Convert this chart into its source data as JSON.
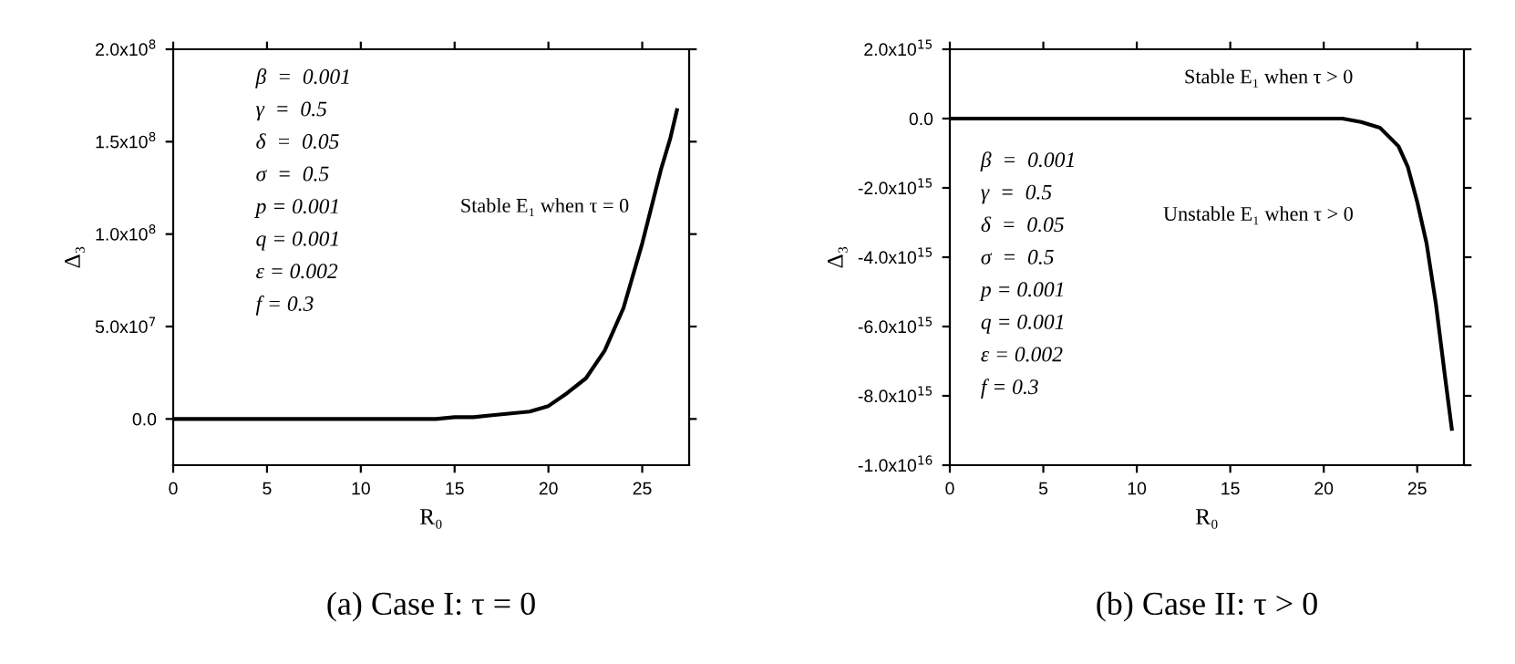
{
  "chart_data": [
    {
      "type": "line",
      "title": "(a) Case I: τ = 0",
      "xlabel": "R₀",
      "ylabel": "Δ₃",
      "x": [
        0,
        5,
        10,
        12,
        14,
        15,
        16,
        17,
        18,
        19,
        20,
        21,
        22,
        23,
        24,
        25,
        25.5,
        26,
        26.5,
        26.85
      ],
      "values": [
        0,
        0,
        0,
        0,
        0,
        1000000.0,
        1000000.0,
        2000000.0,
        3000000.0,
        4000000.0,
        7000000.0,
        14000000.0,
        22000000.0,
        37000000.0,
        60000000.0,
        95000000.0,
        115000000.0,
        135000000.0,
        152000000.0,
        167000000.0
      ],
      "color": "#000000",
      "xlim": [
        0,
        27.5
      ],
      "ylim": [
        -25000000.0,
        200000000.0
      ],
      "xticks": [
        0,
        5,
        10,
        15,
        20,
        25
      ],
      "yticks": [
        {
          "value": 0,
          "label": "0.0"
        },
        {
          "value": 50000000.0,
          "label": "5.0x10$^{7}$"
        },
        {
          "value": 100000000.0,
          "label": "1.0x10$^{8}$"
        },
        {
          "value": 150000000.0,
          "label": "1.5x10$^{8}$"
        },
        {
          "value": 200000000.0,
          "label": "2.0x10$^{8}$"
        }
      ],
      "annotations": [
        "Stable E₁ when τ = 0",
        "β  =  0.001",
        "γ  =  0.5",
        "δ  =  0.05",
        "σ  =  0.5",
        "p = 0.001",
        "q = 0.001",
        "ε = 0.002",
        "f = 0.3"
      ],
      "line_style": "solid",
      "marker": "none",
      "grid": false,
      "legend": false
    },
    {
      "type": "line",
      "title": "(b) Case II: τ > 0",
      "xlabel": "R₀",
      "ylabel": "Δ₃",
      "x": [
        0,
        5,
        10,
        15,
        20,
        21,
        22,
        23,
        24,
        24.5,
        25,
        25.5,
        26,
        26.5,
        26.85
      ],
      "values": [
        0,
        0,
        0,
        0,
        0,
        0,
        -100000000000000.0,
        -260000000000000.0,
        -800000000000000.0,
        -1400000000000000.0,
        -2400000000000000.0,
        -3600000000000000.0,
        -5350000000000000.0,
        -7500000000000000.0,
        -8950000000000000.0
      ],
      "color": "#000000",
      "xlim": [
        0,
        27.5
      ],
      "ylim": [
        -1e+16,
        2000000000000000.0
      ],
      "xticks": [
        0,
        5,
        10,
        15,
        20,
        25
      ],
      "yticks": [
        {
          "value": -1e+16,
          "label": "-1.0x10$^{16}$"
        },
        {
          "value": -8000000000000000.0,
          "label": "-8.0x10$^{15}$"
        },
        {
          "value": -6000000000000000.0,
          "label": "-6.0x10$^{15}$"
        },
        {
          "value": -4000000000000000.0,
          "label": "-4.0x10$^{15}$"
        },
        {
          "value": -2000000000000000.0,
          "label": "-2.0x10$^{15}$"
        },
        {
          "value": 0,
          "label": "0.0"
        },
        {
          "value": 2000000000000000.0,
          "label": "2.0x10$^{15}$"
        }
      ],
      "annotations": [
        "Stable E₁ when τ > 0",
        "Unstable E₁ when τ > 0",
        "β  =  0.001",
        "γ  =  0.5",
        "δ  =  0.05",
        "σ  =  0.5",
        "p = 0.001",
        "q = 0.001",
        "ε = 0.002",
        "f = 0.3"
      ],
      "line_style": "solid",
      "marker": "none",
      "grid": false,
      "legend": false
    }
  ]
}
